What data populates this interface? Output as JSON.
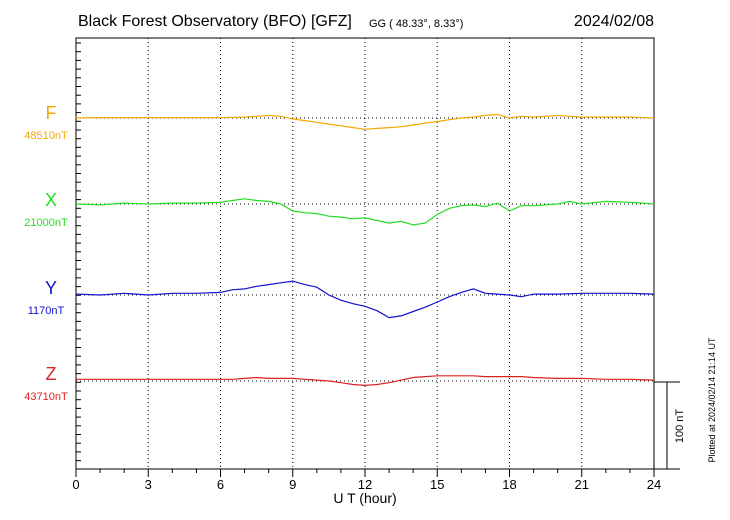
{
  "chart_data": {
    "type": "line",
    "title": "Black Forest Observatory (BFO)  [GFZ]",
    "coords": "GG ( 48.33°,   8.33°)",
    "date": "2024/02/08",
    "xlabel": "U T (hour)",
    "xlim": [
      0,
      24
    ],
    "xticks": [
      "0",
      "3",
      "6",
      "9",
      "12",
      "15",
      "18",
      "21",
      "24"
    ],
    "scale_label": "100 nT",
    "scale_nT": 100,
    "plotted_note": "Plotted at 2024/02/14 21:14 UT",
    "series": [
      {
        "name": "F",
        "color": "#f5a800",
        "baseline_label": "48510nT",
        "baseline_nT": 48510,
        "x": [
          0,
          1,
          2,
          3,
          4,
          5,
          6,
          7,
          7.5,
          8,
          8.5,
          9,
          9.5,
          10,
          10.5,
          11,
          11.5,
          12,
          12.5,
          13,
          13.5,
          14,
          14.5,
          15,
          15.5,
          16,
          16.5,
          17,
          17.5,
          18,
          18.5,
          19,
          20,
          20.5,
          21,
          22,
          23,
          24
        ],
        "v": [
          0,
          0.5,
          0.5,
          0.5,
          0.5,
          0.5,
          0.5,
          1,
          2,
          3,
          2,
          -1,
          -3,
          -5,
          -7,
          -9,
          -11,
          -13,
          -12,
          -11,
          -10,
          -8,
          -6,
          -4,
          -2,
          0,
          1,
          3,
          4,
          0,
          2,
          1,
          3,
          2,
          1,
          1,
          1,
          0
        ]
      },
      {
        "name": "X",
        "color": "#22dd22",
        "baseline_label": "21000nT",
        "baseline_nT": 21000,
        "x": [
          0,
          1,
          2,
          3,
          4,
          5,
          6,
          6.5,
          7,
          7.5,
          8,
          8.5,
          9,
          9.5,
          10,
          10.5,
          11,
          11.5,
          12,
          12.5,
          13,
          13.5,
          14,
          14.5,
          15,
          15.5,
          16,
          16.5,
          17,
          17.5,
          18,
          18.5,
          19,
          20,
          20.5,
          21,
          22,
          23,
          24
        ],
        "v": [
          0,
          -1,
          1,
          0,
          1,
          1,
          2,
          4,
          6,
          4,
          3,
          0,
          -8,
          -10,
          -11,
          -14,
          -15,
          -17,
          -16,
          -19,
          -22,
          -20,
          -24,
          -22,
          -12,
          -5,
          -2,
          -1,
          -3,
          1,
          -8,
          -2,
          -2,
          0,
          3,
          0,
          3,
          2,
          0
        ]
      },
      {
        "name": "Y",
        "color": "#1111cc",
        "baseline_label": "1170nT",
        "baseline_nT": 1170,
        "x": [
          0,
          1,
          2,
          3,
          4,
          5,
          6,
          6.5,
          7,
          7.5,
          8,
          8.5,
          9,
          9.5,
          10,
          10.5,
          11,
          11.5,
          12,
          12.5,
          13,
          13.5,
          14,
          14.5,
          15,
          15.5,
          16,
          16.5,
          17,
          17.5,
          18,
          18.5,
          19,
          20,
          21,
          22,
          23,
          24
        ],
        "v": [
          1,
          0,
          2,
          0,
          2,
          2,
          3,
          6,
          7,
          10,
          12,
          14,
          16,
          12,
          9,
          0,
          -6,
          -10,
          -13,
          -18,
          -26,
          -24,
          -19,
          -14,
          -8,
          -2,
          3,
          7,
          2,
          1,
          0,
          -2,
          1,
          1,
          2,
          2,
          2,
          1
        ]
      },
      {
        "name": "Z",
        "color": "#dd2222",
        "baseline_label": "43710nT",
        "baseline_nT": 43710,
        "x": [
          0,
          1,
          2,
          3,
          4,
          5,
          6,
          6.5,
          7,
          7.5,
          8,
          8.5,
          9,
          9.5,
          10,
          10.5,
          11,
          11.5,
          12,
          12.5,
          13,
          13.5,
          14,
          14.5,
          15,
          15.5,
          16,
          16.5,
          17,
          17.5,
          18,
          18.5,
          19,
          20,
          21,
          22,
          23,
          24
        ],
        "v": [
          2,
          2,
          2,
          2,
          2,
          2,
          2,
          2,
          3,
          4,
          3,
          3,
          3,
          2,
          1,
          0,
          -2,
          -4,
          -5,
          -4,
          -2,
          1,
          4,
          5,
          6,
          6,
          6,
          6,
          5,
          5,
          5,
          5,
          4,
          3,
          3,
          2,
          2,
          1
        ]
      }
    ]
  }
}
